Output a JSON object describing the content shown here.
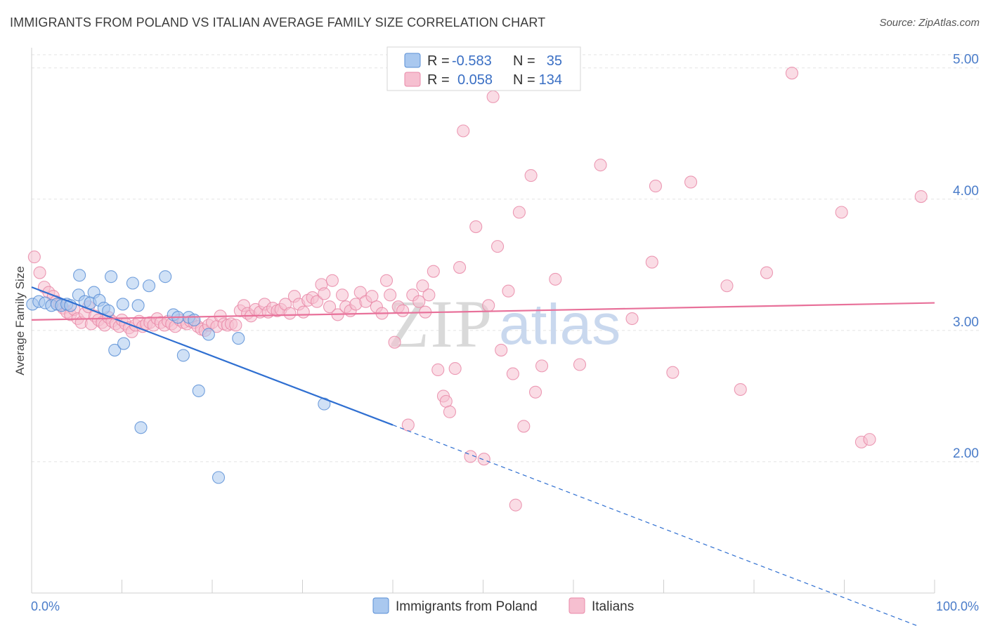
{
  "title": "IMMIGRANTS FROM POLAND VS ITALIAN AVERAGE FAMILY SIZE CORRELATION CHART",
  "source": "Source: ZipAtlas.com",
  "watermark": {
    "zip": "ZIP",
    "atlas": "atlas"
  },
  "colors": {
    "poland_fill": "#a9c8ef",
    "poland_stroke": "#5a8fd6",
    "poland_line": "#2f6fd1",
    "italians_fill": "#f6bfd0",
    "italians_stroke": "#e98aa8",
    "italians_line": "#e8719a",
    "tick_text": "#4a7cc9",
    "grid": "#e3e3e3"
  },
  "stats_box": {
    "rows": [
      {
        "r_label": "R =",
        "r_value": "-0.583",
        "n_label": "N =",
        "n_value": "35"
      },
      {
        "r_label": "R =",
        "r_value": "0.058",
        "n_label": "N =",
        "n_value": "134"
      }
    ]
  },
  "chart_data": {
    "type": "scatter",
    "title": "IMMIGRANTS FROM POLAND VS ITALIAN AVERAGE FAMILY SIZE CORRELATION CHART",
    "xlabel": "",
    "ylabel": "Average Family Size",
    "xlim": [
      0,
      100
    ],
    "ylim": [
      1.0,
      5.1
    ],
    "x_tick_labels": [
      "0.0%",
      "100.0%"
    ],
    "y_ticks": [
      2.0,
      3.0,
      4.0,
      5.0
    ],
    "y_tick_labels": [
      "2.00",
      "3.00",
      "4.00",
      "5.00"
    ],
    "grid": true,
    "legend_position": "bottom-center",
    "series": [
      {
        "name": "Immigrants from Poland",
        "color": "#a9c8ef",
        "r": -0.583,
        "n": 35,
        "trend": {
          "x0": 0,
          "y0": 3.33,
          "x1": 40,
          "y1": 2.28,
          "dashed_to_x": 100,
          "dashed_to_y": 0.7
        },
        "points": [
          [
            0.1,
            3.2
          ],
          [
            0.8,
            3.22
          ],
          [
            1.5,
            3.21
          ],
          [
            2.2,
            3.19
          ],
          [
            2.8,
            3.2
          ],
          [
            3.3,
            3.19
          ],
          [
            3.9,
            3.2
          ],
          [
            4.3,
            3.19
          ],
          [
            5.2,
            3.27
          ],
          [
            5.3,
            3.42
          ],
          [
            5.9,
            3.22
          ],
          [
            6.5,
            3.21
          ],
          [
            6.9,
            3.29
          ],
          [
            7.5,
            3.23
          ],
          [
            8.0,
            3.17
          ],
          [
            8.5,
            3.15
          ],
          [
            8.8,
            3.41
          ],
          [
            9.2,
            2.85
          ],
          [
            10.1,
            3.2
          ],
          [
            10.2,
            2.9
          ],
          [
            11.2,
            3.36
          ],
          [
            11.8,
            3.19
          ],
          [
            12.1,
            2.26
          ],
          [
            13.0,
            3.34
          ],
          [
            14.8,
            3.41
          ],
          [
            15.7,
            3.12
          ],
          [
            16.2,
            3.1
          ],
          [
            16.8,
            2.81
          ],
          [
            17.4,
            3.1
          ],
          [
            18.0,
            3.08
          ],
          [
            18.5,
            2.54
          ],
          [
            19.6,
            2.97
          ],
          [
            20.7,
            1.88
          ],
          [
            22.9,
            2.94
          ],
          [
            32.4,
            2.44
          ]
        ]
      },
      {
        "name": "Italians",
        "color": "#f6bfd0",
        "r": 0.058,
        "n": 134,
        "trend": {
          "x0": 0,
          "y0": 3.08,
          "x1": 100,
          "y1": 3.21
        },
        "points": [
          [
            0.3,
            3.56
          ],
          [
            0.9,
            3.44
          ],
          [
            1.4,
            3.33
          ],
          [
            1.9,
            3.29
          ],
          [
            2.4,
            3.26
          ],
          [
            2.7,
            3.22
          ],
          [
            3.1,
            3.2
          ],
          [
            3.5,
            3.17
          ],
          [
            3.9,
            3.14
          ],
          [
            4.3,
            3.12
          ],
          [
            4.7,
            3.16
          ],
          [
            5.1,
            3.09
          ],
          [
            5.5,
            3.06
          ],
          [
            5.9,
            3.13
          ],
          [
            6.3,
            3.18
          ],
          [
            6.6,
            3.05
          ],
          [
            7.0,
            3.11
          ],
          [
            7.4,
            3.08
          ],
          [
            7.8,
            3.06
          ],
          [
            8.1,
            3.04
          ],
          [
            8.5,
            3.1
          ],
          [
            8.9,
            3.07
          ],
          [
            9.3,
            3.05
          ],
          [
            9.7,
            3.03
          ],
          [
            10.0,
            3.08
          ],
          [
            10.4,
            3.05
          ],
          [
            10.8,
            3.02
          ],
          [
            11.1,
            2.99
          ],
          [
            11.5,
            3.04
          ],
          [
            11.9,
            3.07
          ],
          [
            12.3,
            3.03
          ],
          [
            12.7,
            3.05
          ],
          [
            13.1,
            3.06
          ],
          [
            13.5,
            3.04
          ],
          [
            13.9,
            3.09
          ],
          [
            14.3,
            3.06
          ],
          [
            14.7,
            3.04
          ],
          [
            15.1,
            3.07
          ],
          [
            15.5,
            3.05
          ],
          [
            15.9,
            3.03
          ],
          [
            16.4,
            3.08
          ],
          [
            16.8,
            3.06
          ],
          [
            17.2,
            3.05
          ],
          [
            17.6,
            3.07
          ],
          [
            18.0,
            3.06
          ],
          [
            18.4,
            3.03
          ],
          [
            18.8,
            3.01
          ],
          [
            19.2,
            3.0
          ],
          [
            19.6,
            3.04
          ],
          [
            20.0,
            3.06
          ],
          [
            20.5,
            3.03
          ],
          [
            20.9,
            3.11
          ],
          [
            21.3,
            3.05
          ],
          [
            21.7,
            3.04
          ],
          [
            22.1,
            3.05
          ],
          [
            22.6,
            3.04
          ],
          [
            23.1,
            3.15
          ],
          [
            23.5,
            3.19
          ],
          [
            23.9,
            3.13
          ],
          [
            24.3,
            3.11
          ],
          [
            24.8,
            3.16
          ],
          [
            25.3,
            3.14
          ],
          [
            25.8,
            3.2
          ],
          [
            26.2,
            3.14
          ],
          [
            26.7,
            3.17
          ],
          [
            27.2,
            3.15
          ],
          [
            27.6,
            3.16
          ],
          [
            28.1,
            3.2
          ],
          [
            28.6,
            3.13
          ],
          [
            29.1,
            3.26
          ],
          [
            29.6,
            3.2
          ],
          [
            30.1,
            3.14
          ],
          [
            30.6,
            3.23
          ],
          [
            31.1,
            3.25
          ],
          [
            31.6,
            3.22
          ],
          [
            32.1,
            3.35
          ],
          [
            32.4,
            3.28
          ],
          [
            33.0,
            3.18
          ],
          [
            33.3,
            3.38
          ],
          [
            33.9,
            3.12
          ],
          [
            34.4,
            3.27
          ],
          [
            34.8,
            3.18
          ],
          [
            35.3,
            3.15
          ],
          [
            35.9,
            3.2
          ],
          [
            36.4,
            3.29
          ],
          [
            37.0,
            3.22
          ],
          [
            37.7,
            3.26
          ],
          [
            38.2,
            3.18
          ],
          [
            38.8,
            3.13
          ],
          [
            39.3,
            3.38
          ],
          [
            39.7,
            3.27
          ],
          [
            40.2,
            2.91
          ],
          [
            40.6,
            3.18
          ],
          [
            41.1,
            3.15
          ],
          [
            41.7,
            2.28
          ],
          [
            42.2,
            3.27
          ],
          [
            42.9,
            3.22
          ],
          [
            43.3,
            3.34
          ],
          [
            43.6,
            3.14
          ],
          [
            44.0,
            3.27
          ],
          [
            44.5,
            3.45
          ],
          [
            45.0,
            2.7
          ],
          [
            45.6,
            2.5
          ],
          [
            45.9,
            2.46
          ],
          [
            46.3,
            2.38
          ],
          [
            46.9,
            2.71
          ],
          [
            47.4,
            3.48
          ],
          [
            47.8,
            4.52
          ],
          [
            48.6,
            2.04
          ],
          [
            49.2,
            3.79
          ],
          [
            50.1,
            2.02
          ],
          [
            50.6,
            3.19
          ],
          [
            51.1,
            4.78
          ],
          [
            51.6,
            3.64
          ],
          [
            52.0,
            2.85
          ],
          [
            52.8,
            3.3
          ],
          [
            53.3,
            2.67
          ],
          [
            53.6,
            1.67
          ],
          [
            54.0,
            3.9
          ],
          [
            54.5,
            2.27
          ],
          [
            55.3,
            4.18
          ],
          [
            55.8,
            2.53
          ],
          [
            56.5,
            2.73
          ],
          [
            58.0,
            3.39
          ],
          [
            60.7,
            2.74
          ],
          [
            63.0,
            4.26
          ],
          [
            66.5,
            3.09
          ],
          [
            68.7,
            3.52
          ],
          [
            69.1,
            4.1
          ],
          [
            71.0,
            2.68
          ],
          [
            73.0,
            4.13
          ],
          [
            77.0,
            3.34
          ],
          [
            78.5,
            2.55
          ],
          [
            81.4,
            3.44
          ],
          [
            84.2,
            4.96
          ],
          [
            89.7,
            3.9
          ],
          [
            91.9,
            2.15
          ],
          [
            92.8,
            2.17
          ],
          [
            98.5,
            4.02
          ]
        ]
      }
    ]
  }
}
